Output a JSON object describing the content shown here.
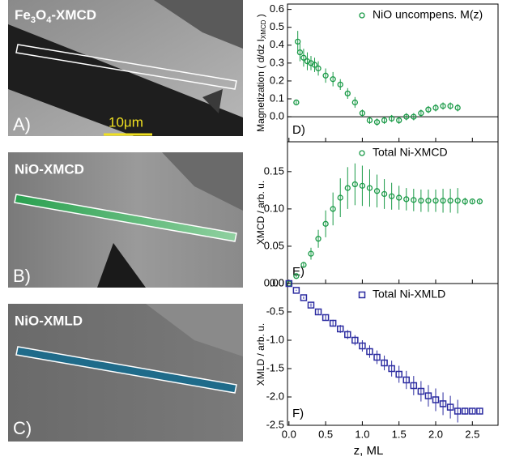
{
  "image_panels": [
    {
      "title_parts": [
        "Fe",
        "3",
        "O",
        "4",
        "-XMCD"
      ],
      "label": "A)",
      "scale_bar": "10μm"
    },
    {
      "title": "NiO-XMCD",
      "label": "B)"
    },
    {
      "title": "NiO-XMLD",
      "label": "C)"
    }
  ],
  "chart_data": [
    {
      "type": "scatter",
      "panel_label": "D)",
      "ylabel_parts": [
        "Magnetization ( d/dz I",
        "XMCD",
        " )"
      ],
      "xlim": [
        -0.02,
        2.85
      ],
      "ylim": [
        -0.14,
        0.63
      ],
      "yticks": [
        {
          "value": 0,
          "label": "0.0"
        },
        0.1,
        0.2,
        0.3,
        0.4,
        0.5,
        0.6
      ],
      "zero_line": true,
      "series": [
        {
          "name": "NiO uncompens. M(z)",
          "color": "#1a9a47",
          "marker": "circle",
          "x": [
            0.1,
            0.12,
            0.15,
            0.2,
            0.25,
            0.3,
            0.35,
            0.4,
            0.5,
            0.6,
            0.7,
            0.8,
            0.9,
            1.0,
            1.1,
            1.2,
            1.3,
            1.4,
            1.5,
            1.6,
            1.7,
            1.8,
            1.9,
            2.0,
            2.1,
            2.2,
            2.3
          ],
          "values": [
            0.08,
            0.42,
            0.36,
            0.33,
            0.31,
            0.3,
            0.29,
            0.27,
            0.23,
            0.21,
            0.18,
            0.13,
            0.08,
            0.02,
            -0.02,
            -0.03,
            -0.02,
            -0.01,
            -0.02,
            0.0,
            0.0,
            0.02,
            0.04,
            0.05,
            0.06,
            0.06,
            0.05
          ],
          "errors": [
            0.01,
            0.06,
            0.05,
            0.05,
            0.05,
            0.04,
            0.04,
            0.04,
            0.04,
            0.04,
            0.03,
            0.03,
            0.03,
            0.02,
            0.02,
            0.02,
            0.02,
            0.02,
            0.02,
            0.02,
            0.02,
            0.02,
            0.02,
            0.02,
            0.02,
            0.02,
            0.02
          ]
        }
      ]
    },
    {
      "type": "scatter",
      "panel_label": "E)",
      "ylabel_parts": [
        "XMCD / arb. u."
      ],
      "xlim": [
        -0.02,
        2.85
      ],
      "ylim": [
        0,
        0.19
      ],
      "yticks": [
        {
          "value": 0,
          "label": "0.00"
        },
        0.05,
        {
          "value": 0.1,
          "label": "0.10"
        },
        0.15
      ],
      "series": [
        {
          "name": "Total Ni-XMCD",
          "color": "#1a9a47",
          "marker": "circle",
          "x": [
            0,
            0.1,
            0.2,
            0.3,
            0.4,
            0.5,
            0.6,
            0.7,
            0.8,
            0.9,
            1.0,
            1.1,
            1.2,
            1.3,
            1.4,
            1.5,
            1.6,
            1.7,
            1.8,
            1.9,
            2.0,
            2.1,
            2.2,
            2.3,
            2.4,
            2.5,
            2.6
          ],
          "values": [
            0,
            0.01,
            0.025,
            0.04,
            0.06,
            0.08,
            0.1,
            0.115,
            0.128,
            0.133,
            0.131,
            0.128,
            0.124,
            0.12,
            0.117,
            0.115,
            0.113,
            0.112,
            0.111,
            0.111,
            0.111,
            0.111,
            0.111,
            0.111,
            0.11,
            0.11,
            0.11
          ],
          "errors": [
            0,
            0.002,
            0.004,
            0.008,
            0.012,
            0.018,
            0.022,
            0.026,
            0.028,
            0.028,
            0.027,
            0.025,
            0.022,
            0.02,
            0.018,
            0.016,
            0.015,
            0.015,
            0.015,
            0.015,
            0.015,
            0.016,
            0.016,
            0.017,
            0.005,
            0.002,
            0.002
          ]
        }
      ]
    },
    {
      "type": "scatter",
      "panel_label": "F)",
      "ylabel_parts": [
        "XMLD / arb. u."
      ],
      "xlabel": "z, ML",
      "xlim": [
        -0.02,
        2.85
      ],
      "ylim": [
        -2.5,
        0
      ],
      "xticks": [
        {
          "value": 0,
          "label": "0.0"
        },
        0.5,
        {
          "value": 1,
          "label": "1.0"
        },
        1.5,
        {
          "value": 2,
          "label": "2.0"
        },
        2.5
      ],
      "yticks": [
        {
          "value": 0,
          "label": "0.0"
        },
        -0.5,
        {
          "value": -1,
          "label": "-1.0"
        },
        -1.5,
        {
          "value": -2,
          "label": "-2.0"
        },
        -2.5
      ],
      "series": [
        {
          "name": "Total Ni-XMLD",
          "color": "#2b2ba0",
          "marker": "square",
          "x": [
            0,
            0.1,
            0.2,
            0.3,
            0.4,
            0.5,
            0.6,
            0.7,
            0.8,
            0.9,
            1.0,
            1.1,
            1.2,
            1.3,
            1.4,
            1.5,
            1.6,
            1.7,
            1.8,
            1.9,
            2.0,
            2.1,
            2.2,
            2.3,
            2.4,
            2.5,
            2.6
          ],
          "values": [
            0,
            -0.12,
            -0.25,
            -0.38,
            -0.5,
            -0.6,
            -0.7,
            -0.8,
            -0.9,
            -1.0,
            -1.1,
            -1.2,
            -1.3,
            -1.4,
            -1.5,
            -1.6,
            -1.7,
            -1.8,
            -1.9,
            -1.98,
            -2.05,
            -2.12,
            -2.18,
            -2.25,
            -2.25,
            -2.25,
            -2.25
          ],
          "errors": [
            0,
            0.01,
            0.02,
            0.03,
            0.04,
            0.05,
            0.06,
            0.07,
            0.08,
            0.09,
            0.1,
            0.11,
            0.12,
            0.13,
            0.14,
            0.15,
            0.16,
            0.17,
            0.18,
            0.19,
            0.2,
            0.2,
            0.2,
            0.2,
            0.06,
            0.04,
            0.04
          ]
        }
      ]
    }
  ]
}
